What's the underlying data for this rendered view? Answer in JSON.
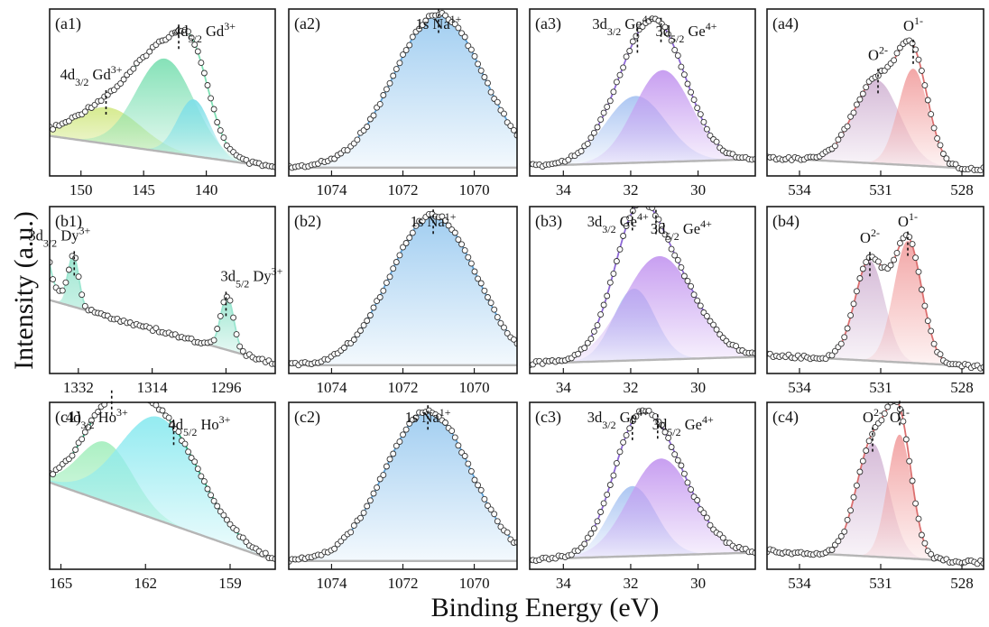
{
  "axis_titles": {
    "y": "Intensity (a.u.)",
    "x": "Binding Energy (eV)"
  },
  "colors": {
    "gd_a": "#d4e98a",
    "gd_b": "#7fe0b4",
    "gd_c": "#7fdfe8",
    "dy": "#9be6d0",
    "ho_a": "#a7efc0",
    "ho_b": "#8eeaf0",
    "ho_env": "#2aa779",
    "na": "#9ccbf0",
    "na_env": "#5b9fd6",
    "ge_a": "#a9c4f2",
    "ge_b": "#c59af0",
    "ge_env": "#8d67d6",
    "o2": "#d4b8d6",
    "o1": "#f2a2a2",
    "o_env": "#dc6f6f",
    "background": "#b5b5b5"
  },
  "chart_data": [
    {
      "id": "a1",
      "type": "line",
      "panel_label": "(a1)",
      "x_reversed": true,
      "xlim": [
        152.5,
        134.5
      ],
      "xticks": [
        150,
        145,
        140
      ],
      "annotations": [
        {
          "x": 148.0,
          "parts": [
            "4d",
            "3/2",
            " Gd",
            "3+"
          ]
        },
        {
          "x": 142.2,
          "parts": [
            "4d",
            "5/2",
            " Gd",
            "3+"
          ]
        }
      ],
      "peaks": [
        {
          "center": 147.8,
          "height": 0.22,
          "width": 2.6,
          "color": "gd_a"
        },
        {
          "center": 143.3,
          "height": 0.56,
          "width": 2.3,
          "color": "gd_b"
        },
        {
          "center": 141.0,
          "height": 0.34,
          "width": 1.3,
          "color": "gd_c"
        }
      ],
      "envelope_color": "gd_b"
    },
    {
      "id": "a2",
      "type": "line",
      "panel_label": "(a2)",
      "x_reversed": true,
      "xlim": [
        1075.2,
        1068.8
      ],
      "xticks": [
        1074,
        1072,
        1070
      ],
      "annotations": [
        {
          "x": 1071.0,
          "parts": [
            "1s Na",
            "1+"
          ]
        }
      ],
      "peaks": [
        {
          "center": 1071.0,
          "height": 0.92,
          "width": 1.25,
          "color": "na"
        }
      ],
      "envelope_color": "na_env"
    },
    {
      "id": "a3",
      "type": "line",
      "panel_label": "(a3)",
      "x_reversed": true,
      "xlim": [
        35.0,
        28.3
      ],
      "xticks": [
        34,
        32,
        30
      ],
      "annotations": [
        {
          "x": 31.8,
          "parts": [
            "3d",
            "3/2",
            " Ge",
            "4+"
          ]
        },
        {
          "x": 31.1,
          "parts": [
            "3d",
            "5/2",
            " Ge",
            "4+"
          ]
        }
      ],
      "peaks": [
        {
          "center": 31.85,
          "height": 0.4,
          "width": 0.9,
          "color": "ge_a"
        },
        {
          "center": 31.05,
          "height": 0.55,
          "width": 0.85,
          "color": "ge_b"
        }
      ],
      "envelope_color": "ge_env"
    },
    {
      "id": "a4",
      "type": "line",
      "panel_label": "(a4)",
      "x_reversed": true,
      "xlim": [
        535.2,
        527.2
      ],
      "xticks": [
        534,
        531,
        528
      ],
      "annotations": [
        {
          "x": 531.1,
          "parts": [
            "O",
            "2-"
          ]
        },
        {
          "x": 529.8,
          "parts": [
            "O",
            "1-"
          ]
        }
      ],
      "peaks": [
        {
          "center": 531.15,
          "height": 0.5,
          "width": 0.85,
          "color": "o2"
        },
        {
          "center": 529.8,
          "height": 0.58,
          "width": 0.55,
          "color": "o1"
        }
      ],
      "envelope_color": "o_env"
    },
    {
      "id": "b1",
      "type": "line",
      "panel_label": "(b1)",
      "x_reversed": true,
      "xlim": [
        1339.0,
        1284.0
      ],
      "xticks": [
        1332,
        1314,
        1296
      ],
      "annotations": [
        {
          "x": 1333.0,
          "parts": [
            "3d",
            "3/2",
            " Dy",
            "3+"
          ]
        },
        {
          "x": 1296.0,
          "parts": [
            "3d",
            "5/2",
            " Dy",
            "3+"
          ]
        }
      ],
      "peaks": [
        {
          "center": 1333.2,
          "height": 0.3,
          "width": 1.3,
          "color": "dy"
        },
        {
          "center": 1295.7,
          "height": 0.32,
          "width": 1.6,
          "color": "dy"
        }
      ],
      "envelope_color": "dy"
    },
    {
      "id": "b2",
      "type": "line",
      "panel_label": "(b2)",
      "x_reversed": true,
      "xlim": [
        1075.2,
        1068.8
      ],
      "xticks": [
        1074,
        1072,
        1070
      ],
      "annotations": [
        {
          "x": 1071.15,
          "parts": [
            "1s Na",
            "1+"
          ]
        }
      ],
      "peaks": [
        {
          "center": 1071.15,
          "height": 0.9,
          "width": 1.2,
          "color": "na"
        }
      ],
      "envelope_color": "na_env"
    },
    {
      "id": "b3",
      "type": "line",
      "panel_label": "(b3)",
      "x_reversed": true,
      "xlim": [
        35.0,
        28.3
      ],
      "xticks": [
        34,
        32,
        30
      ],
      "annotations": [
        {
          "x": 31.95,
          "parts": [
            "3d",
            "3/2",
            " Ge",
            "4+"
          ]
        },
        {
          "x": 31.25,
          "parts": [
            "3d",
            "5/2",
            " Ge",
            "4+"
          ]
        }
      ],
      "peaks": [
        {
          "center": 31.9,
          "height": 0.43,
          "width": 0.62,
          "color": "ge_a"
        },
        {
          "center": 31.15,
          "height": 0.62,
          "width": 1.05,
          "color": "ge_b"
        }
      ],
      "envelope_color": "ge_env"
    },
    {
      "id": "b4",
      "type": "line",
      "panel_label": "(b4)",
      "x_reversed": true,
      "xlim": [
        535.2,
        527.2
      ],
      "xticks": [
        534,
        531,
        528
      ],
      "annotations": [
        {
          "x": 531.4,
          "parts": [
            "O",
            "2-"
          ]
        },
        {
          "x": 530.0,
          "parts": [
            "O",
            "1-"
          ]
        }
      ],
      "peaks": [
        {
          "center": 531.4,
          "height": 0.6,
          "width": 0.55,
          "color": "o2"
        },
        {
          "center": 530.0,
          "height": 0.73,
          "width": 0.52,
          "color": "o1"
        }
      ],
      "envelope_color": "o_env"
    },
    {
      "id": "c1",
      "type": "line",
      "panel_label": "(c1)",
      "x_reversed": true,
      "xlim": [
        165.4,
        157.4
      ],
      "xticks": [
        165,
        162,
        159
      ],
      "annotations": [
        {
          "x": 163.2,
          "parts": [
            "4d",
            "3/2",
            " Ho",
            "3+"
          ]
        },
        {
          "x": 161.0,
          "parts": [
            "4d",
            "5/2",
            " Ho",
            "3+"
          ]
        }
      ],
      "peaks": [
        {
          "center": 163.4,
          "height": 0.36,
          "width": 0.95,
          "color": "ho_a"
        },
        {
          "center": 161.5,
          "height": 0.62,
          "width": 1.4,
          "color": "ho_b"
        }
      ],
      "envelope_color": "ho_env"
    },
    {
      "id": "c2",
      "type": "line",
      "panel_label": "(c2)",
      "x_reversed": true,
      "xlim": [
        1075.2,
        1068.8
      ],
      "xticks": [
        1074,
        1072,
        1070
      ],
      "annotations": [
        {
          "x": 1071.3,
          "parts": [
            "1s Na",
            "1+"
          ]
        }
      ],
      "peaks": [
        {
          "center": 1071.3,
          "height": 0.9,
          "width": 1.2,
          "color": "na"
        }
      ],
      "envelope_color": "na_env"
    },
    {
      "id": "c3",
      "type": "line",
      "panel_label": "(c3)",
      "x_reversed": true,
      "xlim": [
        35.0,
        28.3
      ],
      "xticks": [
        34,
        32,
        30
      ],
      "annotations": [
        {
          "x": 31.95,
          "parts": [
            "3d",
            "3/2",
            " Ge",
            "4+"
          ]
        },
        {
          "x": 31.2,
          "parts": [
            "3d",
            "5/2",
            " Ge",
            "4+"
          ]
        }
      ],
      "peaks": [
        {
          "center": 31.95,
          "height": 0.42,
          "width": 0.7,
          "color": "ge_a"
        },
        {
          "center": 31.1,
          "height": 0.58,
          "width": 0.95,
          "color": "ge_b"
        }
      ],
      "envelope_color": "ge_env"
    },
    {
      "id": "c4",
      "type": "line",
      "panel_label": "(c4)",
      "x_reversed": true,
      "xlim": [
        535.2,
        527.2
      ],
      "xticks": [
        534,
        531,
        528
      ],
      "annotations": [
        {
          "x": 531.3,
          "parts": [
            "O",
            "2-"
          ]
        },
        {
          "x": 530.3,
          "parts": [
            "O",
            "1-"
          ]
        }
      ],
      "peaks": [
        {
          "center": 531.3,
          "height": 0.68,
          "width": 0.6,
          "color": "o2"
        },
        {
          "center": 530.3,
          "height": 0.74,
          "width": 0.45,
          "color": "o1"
        }
      ],
      "envelope_color": "o_env"
    }
  ]
}
